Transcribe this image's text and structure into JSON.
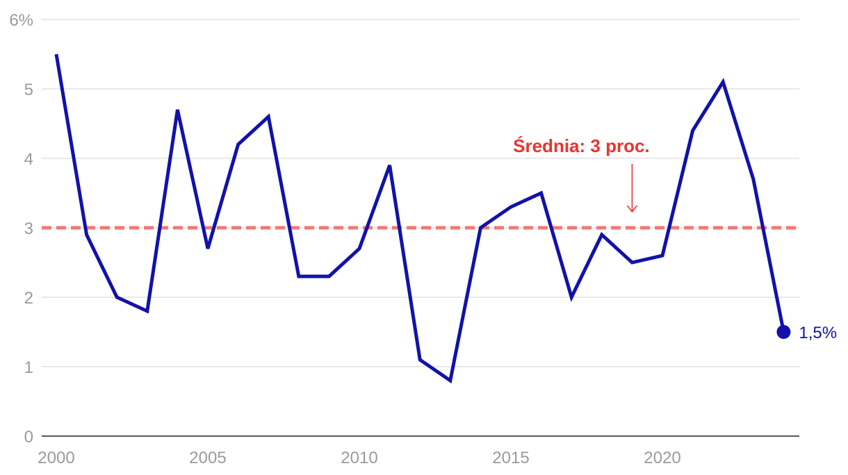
{
  "chart_data": {
    "type": "line",
    "title": "",
    "xlabel": "",
    "ylabel": "",
    "x": [
      2000,
      2001,
      2002,
      2003,
      2004,
      2005,
      2006,
      2007,
      2008,
      2009,
      2010,
      2011,
      2012,
      2013,
      2014,
      2015,
      2016,
      2017,
      2018,
      2019,
      2020,
      2021,
      2022,
      2023,
      2024
    ],
    "series": [
      {
        "values": [
          5.5,
          2.9,
          2.0,
          1.8,
          4.7,
          2.7,
          4.2,
          4.6,
          2.3,
          2.3,
          2.7,
          3.9,
          1.1,
          0.8,
          3.0,
          3.3,
          3.5,
          2.0,
          2.9,
          2.5,
          2.6,
          4.4,
          5.1,
          3.7,
          1.5
        ],
        "color": "#1212aa"
      }
    ],
    "ylim": [
      0,
      6
    ],
    "xlim": [
      1999.6,
      2024.5
    ],
    "y_ticks": [
      0,
      1,
      2,
      3,
      4,
      5,
      6
    ],
    "y_tick_labels": [
      "0",
      "1",
      "2",
      "3",
      "4",
      "5",
      "6%"
    ],
    "x_ticks": [
      2000,
      2005,
      2010,
      2015,
      2020
    ],
    "x_tick_labels": [
      "2000",
      "2005",
      "2010",
      "2015",
      "2020"
    ],
    "grid": true,
    "reference_line": {
      "value": 3,
      "color": "#f07a72",
      "style": "dashed"
    },
    "annotation": {
      "text": "Średnia: 3 proc.",
      "color": "#e8352c",
      "x": 2019
    },
    "end_label": "1,5%",
    "gridline_color": "#dcdcdc",
    "tick_label_color": "#9a9a9a",
    "axis_color": "#222222"
  }
}
